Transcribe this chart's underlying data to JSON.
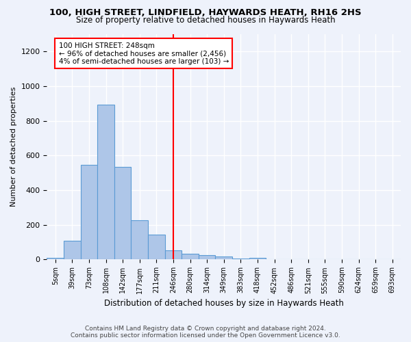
{
  "title": "100, HIGH STREET, LINDFIELD, HAYWARDS HEATH, RH16 2HS",
  "subtitle": "Size of property relative to detached houses in Haywards Heath",
  "xlabel": "Distribution of detached houses by size in Haywards Heath",
  "ylabel": "Number of detached properties",
  "bin_labels": [
    "5sqm",
    "39sqm",
    "73sqm",
    "108sqm",
    "142sqm",
    "177sqm",
    "211sqm",
    "246sqm",
    "280sqm",
    "314sqm",
    "349sqm",
    "383sqm",
    "418sqm",
    "452sqm",
    "486sqm",
    "521sqm",
    "555sqm",
    "590sqm",
    "624sqm",
    "659sqm",
    "693sqm"
  ],
  "bar_heights": [
    10,
    110,
    548,
    893,
    535,
    225,
    143,
    55,
    35,
    25,
    18,
    5,
    10,
    0,
    0,
    0,
    0,
    0,
    0,
    0,
    0
  ],
  "bar_color": "#aec6e8",
  "bar_edgecolor": "#5b9bd5",
  "vline_x": 7,
  "annotation_text": "100 HIGH STREET: 248sqm\n← 96% of detached houses are smaller (2,456)\n4% of semi-detached houses are larger (103) →",
  "ylim": [
    0,
    1300
  ],
  "yticks": [
    0,
    200,
    400,
    600,
    800,
    1000,
    1200
  ],
  "footer": "Contains HM Land Registry data © Crown copyright and database right 2024.\nContains public sector information licensed under the Open Government Licence v3.0.",
  "bg_color": "#eef2fb",
  "grid_color": "#ffffff"
}
